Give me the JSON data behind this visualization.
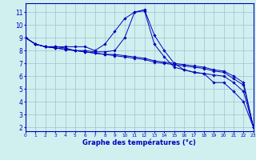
{
  "background_color": "#d0f0f0",
  "grid_color": "#a0c0d0",
  "line_color": "#0000bb",
  "xlabel": "Graphe des températures (°c)",
  "xlim": [
    0,
    23
  ],
  "ylim": [
    1.7,
    11.7
  ],
  "xticks": [
    0,
    1,
    2,
    3,
    4,
    5,
    6,
    7,
    8,
    9,
    10,
    11,
    12,
    13,
    14,
    15,
    16,
    17,
    18,
    19,
    20,
    21,
    22,
    23
  ],
  "yticks": [
    2,
    3,
    4,
    5,
    6,
    7,
    8,
    9,
    10,
    11
  ],
  "lines": [
    [
      9.0,
      8.5,
      8.3,
      8.3,
      8.3,
      8.3,
      8.3,
      8.0,
      8.5,
      9.5,
      10.5,
      11.0,
      11.2,
      9.2,
      8.0,
      7.0,
      6.5,
      6.3,
      6.2,
      5.5,
      5.5,
      4.8,
      4.0,
      2.0
    ],
    [
      9.0,
      8.5,
      8.3,
      8.3,
      8.2,
      8.0,
      8.0,
      7.9,
      7.9,
      8.0,
      9.0,
      11.0,
      11.1,
      8.5,
      7.5,
      6.7,
      6.5,
      6.3,
      6.2,
      6.1,
      6.0,
      5.5,
      4.8,
      2.0
    ],
    [
      9.0,
      8.5,
      8.3,
      8.2,
      8.1,
      8.0,
      7.9,
      7.8,
      7.7,
      7.7,
      7.6,
      7.5,
      7.4,
      7.2,
      7.1,
      7.0,
      6.9,
      6.8,
      6.7,
      6.5,
      6.4,
      6.0,
      5.5,
      2.0
    ],
    [
      9.0,
      8.5,
      8.3,
      8.2,
      8.1,
      8.0,
      7.9,
      7.8,
      7.7,
      7.6,
      7.5,
      7.4,
      7.3,
      7.1,
      7.0,
      6.9,
      6.8,
      6.7,
      6.6,
      6.4,
      6.3,
      5.8,
      5.3,
      2.0
    ]
  ]
}
